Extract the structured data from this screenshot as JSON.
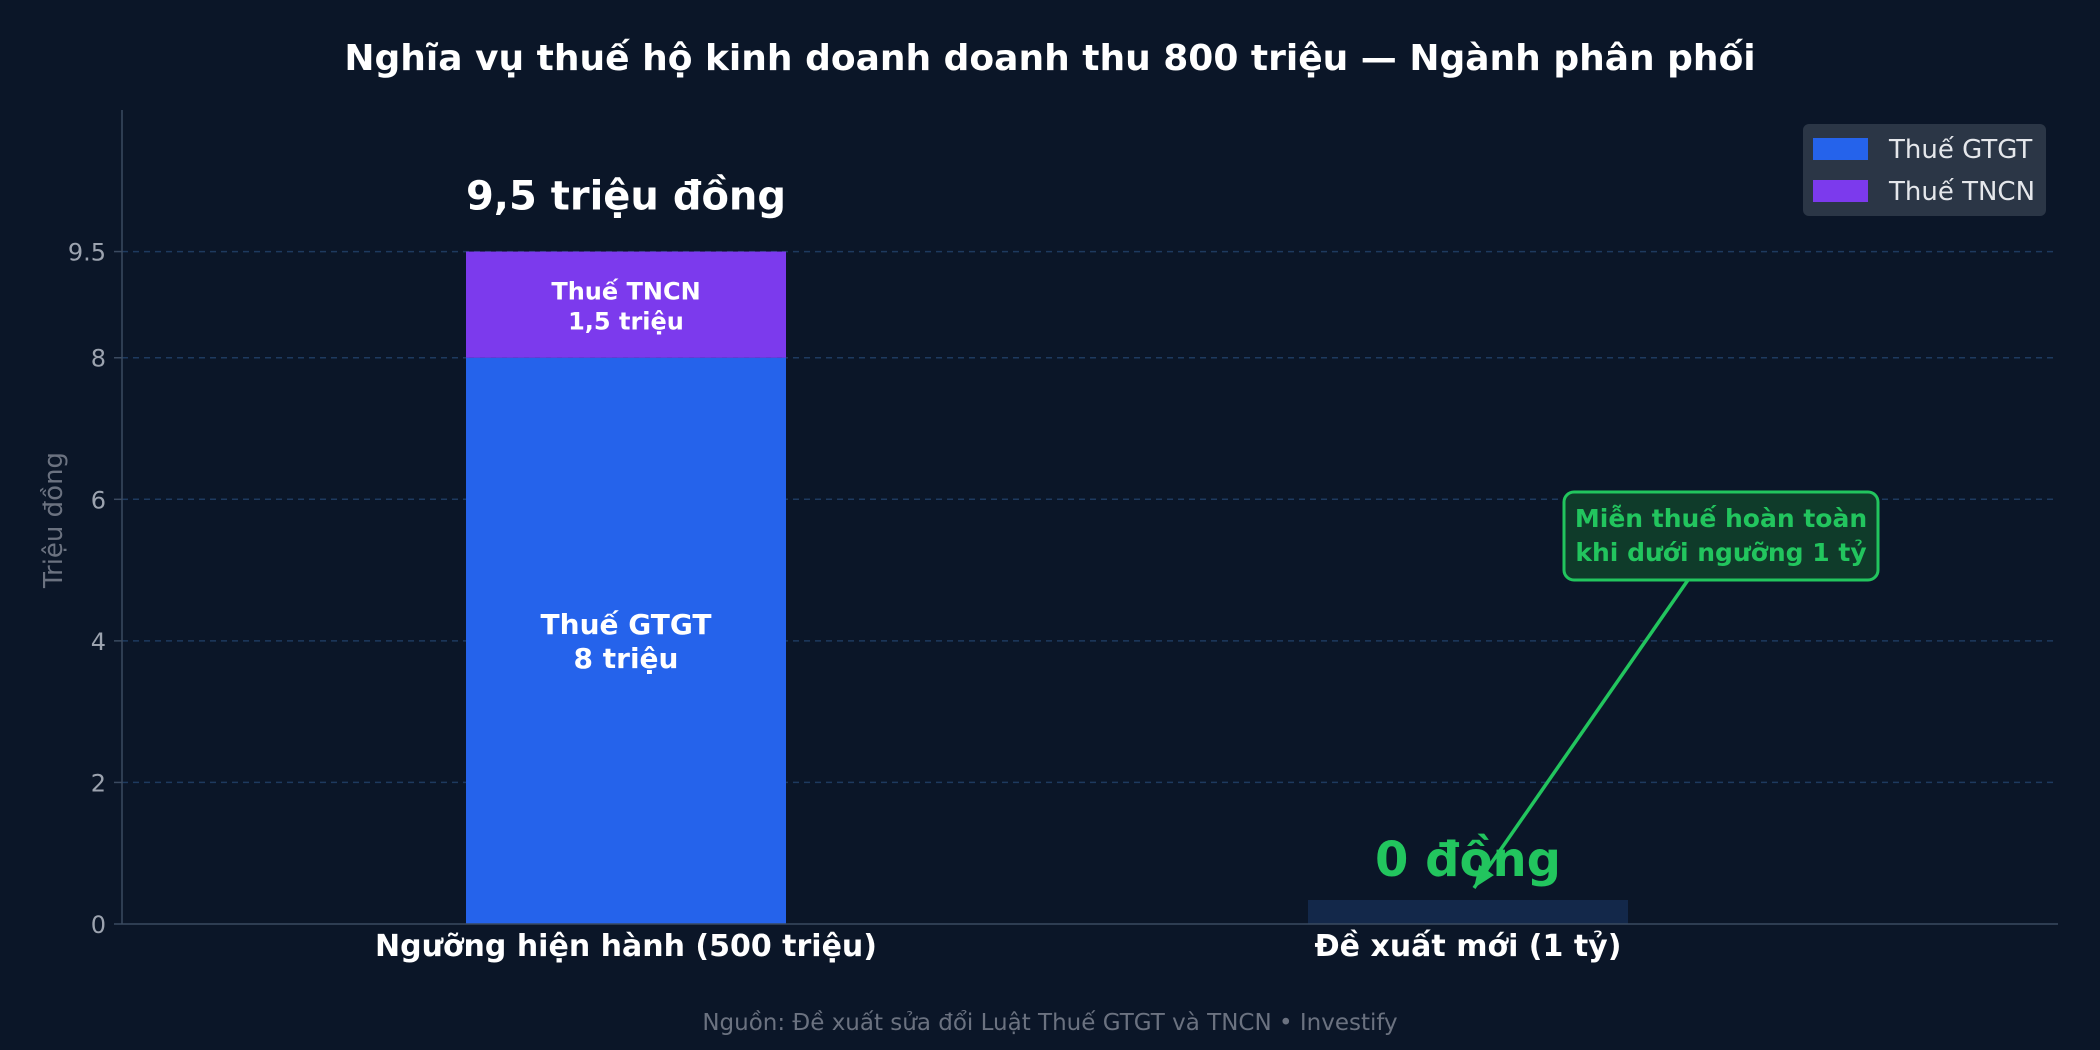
{
  "chart_data": {
    "type": "bar",
    "stacked": true,
    "title": "Nghĩa vụ thuế hộ kinh doanh doanh thu 800 triệu — Ngành phân phối",
    "ylabel": "Triệu đồng",
    "xlabel": "",
    "categories": [
      "Ngưỡng hiện hành (500 triệu)",
      "Đề xuất mới (1 tỷ)"
    ],
    "series": [
      {
        "name": "Thuế GTGT",
        "values": [
          8,
          0
        ],
        "color": "#2563eb"
      },
      {
        "name": "Thuế TNCN",
        "values": [
          1.5,
          0
        ],
        "color": "#7c3aed"
      }
    ],
    "ylim": [
      0,
      11.5
    ],
    "yticks": [
      0,
      2,
      4,
      6,
      8,
      9.5
    ],
    "ytick_labels": [
      "0",
      "2",
      "4",
      "6",
      "8",
      "9.5"
    ],
    "grid": true,
    "legend_position": "top-right",
    "segment_labels": [
      {
        "series": 0,
        "category": 0,
        "lines": [
          "Thuế GTGT",
          "8 triệu"
        ]
      },
      {
        "series": 1,
        "category": 0,
        "lines": [
          "Thuế TNCN",
          "1,5 triệu"
        ]
      }
    ],
    "total_labels": [
      "9,5 triệu đồng",
      "0 đồng"
    ],
    "annotation": {
      "lines": [
        "Miễn thuế hoàn toàn",
        "khi dưới ngưỡng 1 tỷ"
      ],
      "target_category": 1,
      "color": "#22c55e"
    },
    "source": "Nguồn: Đề xuất sửa đổi Luật Thuế GTGT và TNCN  •  Investify"
  },
  "colors": {
    "background": "#0b1628",
    "grid": "#1e3a5f",
    "axis": "#3b4a60",
    "tick_text": "#9ca3af",
    "title_text": "#ffffff",
    "zero_bar_placeholder": "#13284a",
    "zero_total": "#22c55e",
    "legend_bg": "#2b3646"
  }
}
